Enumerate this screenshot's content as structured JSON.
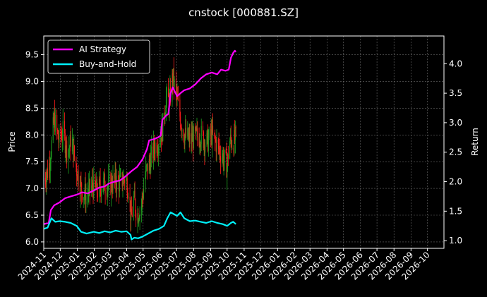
{
  "chart_data": {
    "type": "line",
    "title": "cnstock [000881.SZ]",
    "ylabel": "Price",
    "y2label": "Return",
    "ylim": [
      5.88,
      9.85
    ],
    "y2lim": [
      0.87,
      4.47
    ],
    "yticks": [
      6.0,
      6.5,
      7.0,
      7.5,
      8.0,
      8.5,
      9.0,
      9.5
    ],
    "ytick_labels": [
      "6.0",
      "6.5",
      "7.0",
      "7.5",
      "8.0",
      "8.5",
      "9.0",
      "9.5"
    ],
    "y2ticks": [
      1.0,
      1.5,
      2.0,
      2.5,
      3.0,
      3.5,
      4.0
    ],
    "y2tick_labels": [
      "1.0",
      "1.5",
      "2.0",
      "2.5",
      "3.0",
      "3.5",
      "4.0"
    ],
    "xlim": [
      "2024-11-01",
      "2026-10-31"
    ],
    "xtick_labels": [
      "2024-11",
      "2024-12",
      "2025-01",
      "2025-02",
      "2025-03",
      "2025-04",
      "2025-05",
      "2025-06",
      "2025-07",
      "2025-08",
      "2025-09",
      "2025-10",
      "2025-11",
      "2025-12",
      "2026-01",
      "2026-02",
      "2026-03",
      "2026-04",
      "2026-05",
      "2026-06",
      "2026-07",
      "2026-08",
      "2026-09",
      "2026-10"
    ],
    "grid": true,
    "legend_position": "top-left",
    "colors": {
      "background": "#000000",
      "up": "#1fa01f",
      "down": "#ff1c1c",
      "strategy": "#ff00ff",
      "buyhold": "#00f0f8",
      "grid": "#6b6b6b"
    },
    "price_series": {
      "name": "Price",
      "points": [
        [
          "2024-11-01",
          7.2
        ],
        [
          "2024-11-10",
          7.35
        ],
        [
          "2024-11-20",
          8.3
        ],
        [
          "2024-11-28",
          7.9
        ],
        [
          "2024-12-06",
          8.05
        ],
        [
          "2024-12-14",
          7.7
        ],
        [
          "2024-12-22",
          7.9
        ],
        [
          "2024-12-30",
          7.4
        ],
        [
          "2025-01-08",
          7.0
        ],
        [
          "2025-01-18",
          6.85
        ],
        [
          "2025-01-28",
          7.05
        ],
        [
          "2025-02-07",
          6.95
        ],
        [
          "2025-02-17",
          7.1
        ],
        [
          "2025-02-27",
          7.05
        ],
        [
          "2025-03-09",
          7.15
        ],
        [
          "2025-03-19",
          7.1
        ],
        [
          "2025-03-29",
          7.2
        ],
        [
          "2025-04-05",
          7.0
        ],
        [
          "2025-04-09",
          6.4
        ],
        [
          "2025-04-14",
          6.8
        ],
        [
          "2025-04-20",
          6.5
        ],
        [
          "2025-04-28",
          6.7
        ],
        [
          "2025-05-06",
          7.3
        ],
        [
          "2025-05-14",
          7.5
        ],
        [
          "2025-05-22",
          7.8
        ],
        [
          "2025-05-30",
          7.9
        ],
        [
          "2025-06-05",
          8.1
        ],
        [
          "2025-06-12",
          8.7
        ],
        [
          "2025-06-18",
          8.6
        ],
        [
          "2025-06-24",
          9.1
        ],
        [
          "2025-07-01",
          8.7
        ],
        [
          "2025-07-08",
          8.3
        ],
        [
          "2025-07-15",
          8.0
        ],
        [
          "2025-07-25",
          7.9
        ],
        [
          "2025-08-04",
          7.95
        ],
        [
          "2025-08-14",
          8.0
        ],
        [
          "2025-08-24",
          7.85
        ],
        [
          "2025-09-03",
          8.0
        ],
        [
          "2025-09-13",
          7.8
        ],
        [
          "2025-09-23",
          7.6
        ],
        [
          "2025-10-01",
          7.4
        ],
        [
          "2025-10-05",
          7.9
        ],
        [
          "2025-10-12",
          7.85
        ],
        [
          "2025-10-17",
          7.95
        ]
      ]
    },
    "series": [
      {
        "name": "AI Strategy",
        "axis": "right",
        "points": [
          [
            "2024-11-01",
            1.28
          ],
          [
            "2024-11-10",
            1.3
          ],
          [
            "2024-11-14",
            1.52
          ],
          [
            "2024-11-20",
            1.6
          ],
          [
            "2024-11-30",
            1.65
          ],
          [
            "2024-12-10",
            1.72
          ],
          [
            "2024-12-20",
            1.75
          ],
          [
            "2024-12-31",
            1.78
          ],
          [
            "2025-01-10",
            1.82
          ],
          [
            "2025-01-20",
            1.8
          ],
          [
            "2025-01-31",
            1.85
          ],
          [
            "2025-02-10",
            1.9
          ],
          [
            "2025-02-20",
            1.92
          ],
          [
            "2025-02-28",
            1.97
          ],
          [
            "2025-03-10",
            2.0
          ],
          [
            "2025-03-20",
            2.02
          ],
          [
            "2025-03-31",
            2.1
          ],
          [
            "2025-04-10",
            2.18
          ],
          [
            "2025-04-20",
            2.25
          ],
          [
            "2025-04-30",
            2.38
          ],
          [
            "2025-05-08",
            2.55
          ],
          [
            "2025-05-12",
            2.7
          ],
          [
            "2025-05-20",
            2.72
          ],
          [
            "2025-05-28",
            2.75
          ],
          [
            "2025-06-02",
            2.78
          ],
          [
            "2025-06-05",
            3.05
          ],
          [
            "2025-06-12",
            3.12
          ],
          [
            "2025-06-16",
            3.15
          ],
          [
            "2025-06-20",
            3.5
          ],
          [
            "2025-06-24",
            3.6
          ],
          [
            "2025-06-28",
            3.52
          ],
          [
            "2025-07-02",
            3.45
          ],
          [
            "2025-07-08",
            3.5
          ],
          [
            "2025-07-15",
            3.55
          ],
          [
            "2025-07-25",
            3.58
          ],
          [
            "2025-08-04",
            3.65
          ],
          [
            "2025-08-14",
            3.75
          ],
          [
            "2025-08-24",
            3.82
          ],
          [
            "2025-09-03",
            3.85
          ],
          [
            "2025-09-13",
            3.82
          ],
          [
            "2025-09-20",
            3.9
          ],
          [
            "2025-09-28",
            3.88
          ],
          [
            "2025-10-04",
            3.9
          ],
          [
            "2025-10-08",
            4.1
          ],
          [
            "2025-10-12",
            4.18
          ],
          [
            "2025-10-15",
            4.22
          ],
          [
            "2025-10-17",
            4.2
          ]
        ]
      },
      {
        "name": "Buy-and-Hold",
        "axis": "right",
        "points": [
          [
            "2024-11-01",
            1.2
          ],
          [
            "2024-11-08",
            1.22
          ],
          [
            "2024-11-15",
            1.38
          ],
          [
            "2024-11-22",
            1.32
          ],
          [
            "2024-11-30",
            1.33
          ],
          [
            "2024-12-10",
            1.32
          ],
          [
            "2024-12-20",
            1.3
          ],
          [
            "2024-12-31",
            1.25
          ],
          [
            "2025-01-08",
            1.15
          ],
          [
            "2025-01-18",
            1.12
          ],
          [
            "2025-01-31",
            1.15
          ],
          [
            "2025-02-10",
            1.13
          ],
          [
            "2025-02-20",
            1.16
          ],
          [
            "2025-03-02",
            1.14
          ],
          [
            "2025-03-12",
            1.17
          ],
          [
            "2025-03-22",
            1.15
          ],
          [
            "2025-04-01",
            1.16
          ],
          [
            "2025-04-08",
            1.1
          ],
          [
            "2025-04-10",
            1.02
          ],
          [
            "2025-04-15",
            1.05
          ],
          [
            "2025-04-22",
            1.04
          ],
          [
            "2025-04-30",
            1.07
          ],
          [
            "2025-05-10",
            1.12
          ],
          [
            "2025-05-20",
            1.17
          ],
          [
            "2025-05-30",
            1.2
          ],
          [
            "2025-06-08",
            1.25
          ],
          [
            "2025-06-14",
            1.38
          ],
          [
            "2025-06-20",
            1.48
          ],
          [
            "2025-06-26",
            1.45
          ],
          [
            "2025-07-02",
            1.42
          ],
          [
            "2025-07-08",
            1.48
          ],
          [
            "2025-07-15",
            1.38
          ],
          [
            "2025-07-25",
            1.33
          ],
          [
            "2025-08-04",
            1.34
          ],
          [
            "2025-08-14",
            1.32
          ],
          [
            "2025-08-24",
            1.3
          ],
          [
            "2025-09-03",
            1.33
          ],
          [
            "2025-09-13",
            1.3
          ],
          [
            "2025-09-23",
            1.28
          ],
          [
            "2025-10-01",
            1.25
          ],
          [
            "2025-10-08",
            1.3
          ],
          [
            "2025-10-12",
            1.32
          ],
          [
            "2025-10-17",
            1.28
          ]
        ]
      }
    ]
  }
}
